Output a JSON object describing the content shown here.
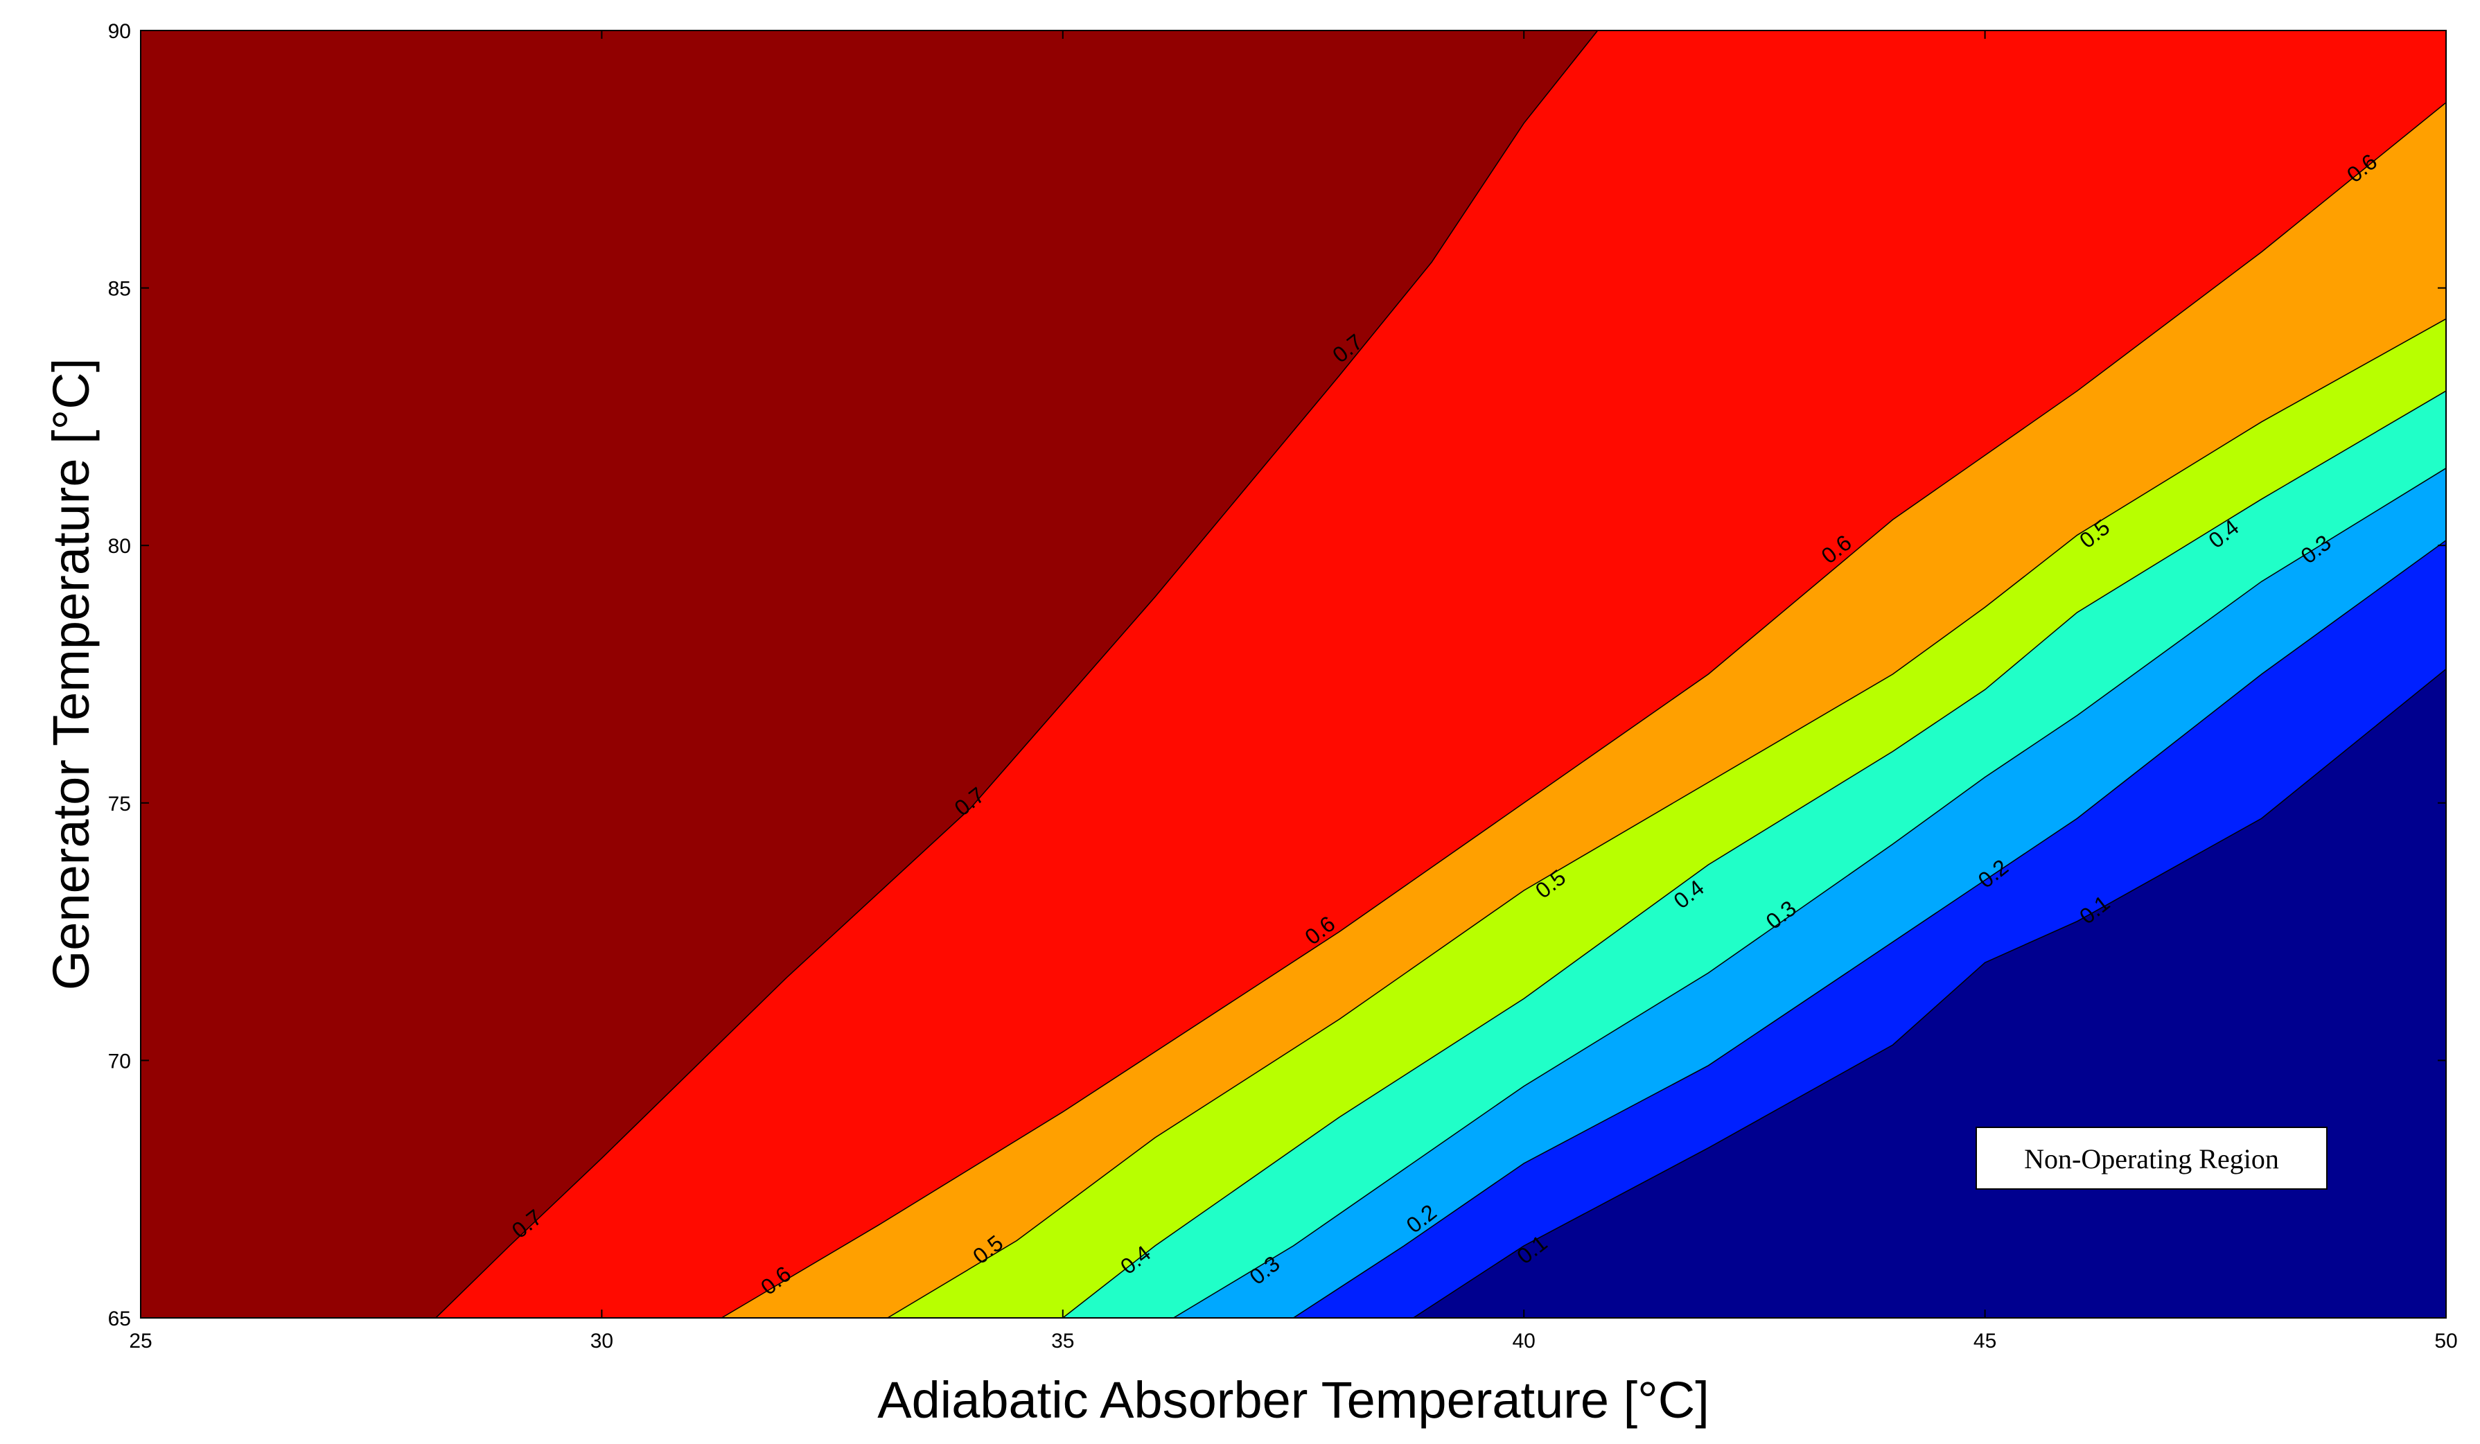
{
  "chart_data": {
    "type": "contour",
    "xlabel": "Adiabatic Absorber Temperature [°C]",
    "ylabel": "Generator Temperature [°C]",
    "xlim": [
      25,
      50
    ],
    "ylim": [
      65,
      90
    ],
    "xticks": [
      25,
      30,
      35,
      40,
      45,
      50
    ],
    "yticks": [
      65,
      70,
      75,
      80,
      85,
      90
    ],
    "grid": false,
    "colormap": "jet",
    "annotation": "Non-Operating Region",
    "levels": [
      {
        "level": "0.1",
        "points": [
          [
            38.8,
            65
          ],
          [
            40.0,
            66.4
          ],
          [
            42.0,
            68.3
          ],
          [
            44.0,
            70.3
          ],
          [
            45.0,
            71.9
          ],
          [
            46.0,
            72.7
          ],
          [
            48.0,
            74.7
          ],
          [
            50.0,
            77.6
          ]
        ]
      },
      {
        "level": "0.2",
        "points": [
          [
            37.5,
            65
          ],
          [
            38.7,
            66.4
          ],
          [
            40.0,
            68.0
          ],
          [
            42.0,
            69.9
          ],
          [
            44.0,
            72.3
          ],
          [
            45.0,
            73.5
          ],
          [
            46.0,
            74.7
          ],
          [
            48.0,
            77.5
          ],
          [
            50.0,
            80.1
          ]
        ]
      },
      {
        "level": "0.3",
        "points": [
          [
            36.2,
            65
          ],
          [
            37.5,
            66.4
          ],
          [
            40.0,
            69.5
          ],
          [
            42.0,
            71.7
          ],
          [
            44.0,
            74.2
          ],
          [
            45.0,
            75.5
          ],
          [
            46.0,
            76.7
          ],
          [
            48.0,
            79.3
          ],
          [
            50.0,
            81.5
          ]
        ]
      },
      {
        "level": "0.4",
        "points": [
          [
            35.0,
            65
          ],
          [
            36.0,
            66.4
          ],
          [
            38.0,
            68.9
          ],
          [
            40.0,
            71.2
          ],
          [
            42.0,
            73.8
          ],
          [
            44.0,
            76.0
          ],
          [
            45.0,
            77.2
          ],
          [
            46.0,
            78.7
          ],
          [
            48.0,
            80.9
          ],
          [
            50.0,
            83.0
          ]
        ]
      },
      {
        "level": "0.5",
        "points": [
          [
            33.1,
            65
          ],
          [
            34.5,
            66.5
          ],
          [
            36.0,
            68.5
          ],
          [
            38.0,
            70.8
          ],
          [
            40.0,
            73.3
          ],
          [
            42.0,
            75.4
          ],
          [
            44.0,
            77.5
          ],
          [
            45.0,
            78.8
          ],
          [
            46.0,
            80.2
          ],
          [
            48.0,
            82.4
          ],
          [
            50.0,
            84.4
          ]
        ]
      },
      {
        "level": "0.6",
        "points": [
          [
            31.3,
            65
          ],
          [
            33.0,
            66.8
          ],
          [
            35.0,
            69.0
          ],
          [
            38.0,
            72.5
          ],
          [
            40.0,
            75.0
          ],
          [
            42.0,
            77.5
          ],
          [
            44.0,
            80.5
          ],
          [
            46.0,
            83.0
          ],
          [
            48.0,
            85.7
          ],
          [
            50.0,
            88.6
          ]
        ]
      },
      {
        "level": "0.7",
        "points": [
          [
            28.2,
            65
          ],
          [
            29.0,
            66.4
          ],
          [
            30.0,
            68.1
          ],
          [
            32.0,
            71.6
          ],
          [
            34.0,
            74.9
          ],
          [
            36.0,
            79.0
          ],
          [
            38.0,
            83.3
          ],
          [
            39.0,
            85.5
          ],
          [
            40.0,
            88.2
          ],
          [
            40.8,
            90.0
          ]
        ]
      }
    ],
    "inline_labels": [
      {
        "text": "0.7",
        "x": 29.2,
        "y": 66.8
      },
      {
        "text": "0.7",
        "x": 34.0,
        "y": 75.0
      },
      {
        "text": "0.7",
        "x": 38.1,
        "y": 83.8
      },
      {
        "text": "0.6",
        "x": 31.9,
        "y": 65.7
      },
      {
        "text": "0.6",
        "x": 37.8,
        "y": 72.5
      },
      {
        "text": "0.6",
        "x": 43.4,
        "y": 79.9
      },
      {
        "text": "0.6",
        "x": 49.1,
        "y": 87.3
      },
      {
        "text": "0.5",
        "x": 34.2,
        "y": 66.3
      },
      {
        "text": "0.5",
        "x": 40.3,
        "y": 73.4
      },
      {
        "text": "0.5",
        "x": 46.2,
        "y": 80.2
      },
      {
        "text": "0.4",
        "x": 35.8,
        "y": 66.1
      },
      {
        "text": "0.4",
        "x": 41.8,
        "y": 73.2
      },
      {
        "text": "0.4",
        "x": 47.6,
        "y": 80.2
      },
      {
        "text": "0.3",
        "x": 37.2,
        "y": 65.9
      },
      {
        "text": "0.3",
        "x": 42.8,
        "y": 72.8
      },
      {
        "text": "0.3",
        "x": 48.6,
        "y": 79.9
      },
      {
        "text": "0.2",
        "x": 38.9,
        "y": 66.9
      },
      {
        "text": "0.2",
        "x": 45.1,
        "y": 73.6
      },
      {
        "text": "0.1",
        "x": 40.1,
        "y": 66.3
      },
      {
        "text": "0.1",
        "x": 46.2,
        "y": 72.9
      }
    ],
    "colors": {
      "below_0.1": "#00008f",
      "0.1-0.2": "#0020ff",
      "0.2-0.3": "#00a8ff",
      "0.3-0.4": "#20ffc8",
      "0.4-0.5": "#b8ff00",
      "0.5-0.6": "#ffa000",
      "0.6-0.7": "#ff0a00",
      "above_0.7": "#910000"
    }
  }
}
